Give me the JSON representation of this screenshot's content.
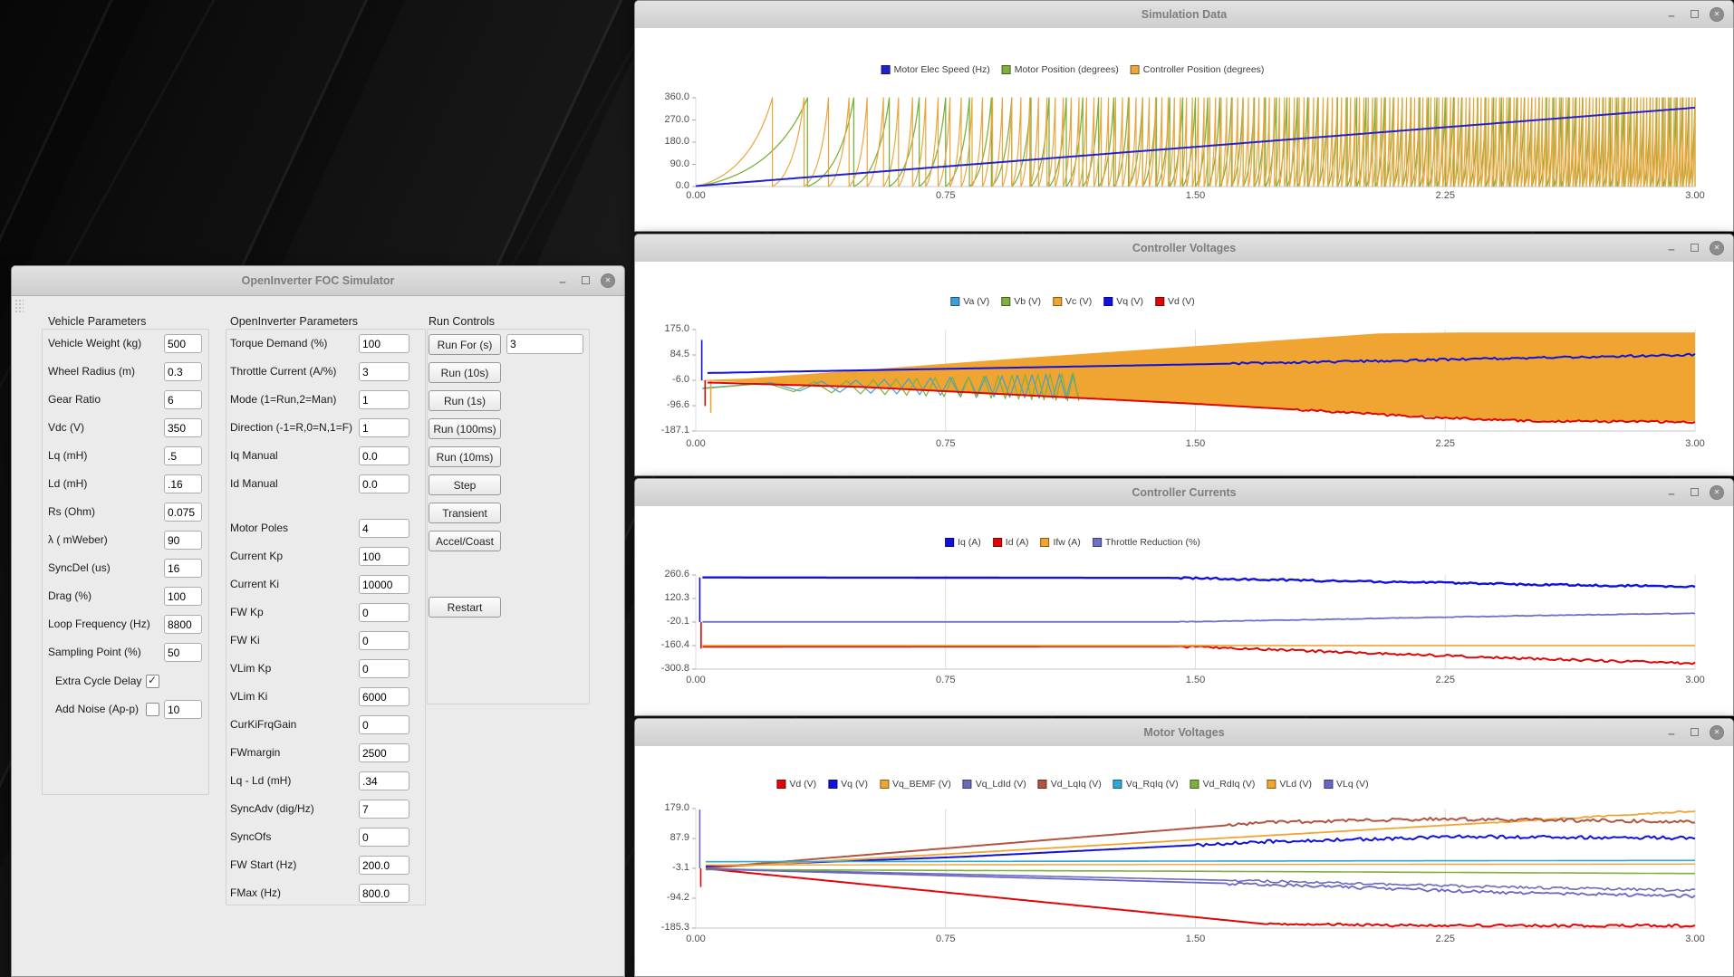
{
  "simulator_window": {
    "title": "OpenInverter FOC Simulator",
    "vehicle": {
      "heading": "Vehicle Parameters",
      "fields": [
        {
          "label": "Vehicle Weight (kg)",
          "value": "500"
        },
        {
          "label": "Wheel Radius (m)",
          "value": "0.3"
        },
        {
          "label": "Gear Ratio",
          "value": "6"
        },
        {
          "label": "Vdc (V)",
          "value": "350"
        },
        {
          "label": "Lq (mH)",
          "value": ".5"
        },
        {
          "label": "Ld (mH)",
          "value": ".16"
        },
        {
          "label": "Rs (Ohm)",
          "value": "0.075"
        },
        {
          "label": "λ ( mWeber)",
          "value": "90"
        },
        {
          "label": "SyncDel (us)",
          "value": "16"
        },
        {
          "label": "Drag (%)",
          "value": "100"
        },
        {
          "label": "Loop Frequency (Hz)",
          "value": "8800"
        },
        {
          "label": "Sampling Point (%)",
          "value": "50"
        }
      ],
      "checkboxes": [
        {
          "label": "Extra Cycle Delay",
          "checked": true,
          "value": null
        },
        {
          "label": "Add Noise (Ap-p)",
          "checked": false,
          "value": "10"
        }
      ]
    },
    "openinverter": {
      "heading": "OpenInverter Parameters",
      "fields_a": [
        {
          "label": "Torque Demand (%)",
          "value": "100"
        },
        {
          "label": "Throttle Current (A/%)",
          "value": "3"
        },
        {
          "label": "Mode (1=Run,2=Man)",
          "value": "1"
        },
        {
          "label": "Direction (-1=R,0=N,1=F)",
          "value": "1"
        },
        {
          "label": "Iq Manual",
          "value": "0.0"
        },
        {
          "label": "Id Manual",
          "value": "0.0"
        }
      ],
      "fields_b": [
        {
          "label": "Motor Poles",
          "value": "4"
        },
        {
          "label": "Current Kp",
          "value": "100"
        },
        {
          "label": "Current Ki",
          "value": "10000"
        },
        {
          "label": "FW Kp",
          "value": "0"
        },
        {
          "label": "FW Ki",
          "value": "0"
        },
        {
          "label": "VLim Kp",
          "value": "0"
        },
        {
          "label": "VLim Ki",
          "value": "6000"
        },
        {
          "label": "CurKiFrqGain",
          "value": "0"
        },
        {
          "label": "FWmargin",
          "value": "2500"
        },
        {
          "label": "Lq - Ld (mH)",
          "value": ".34"
        },
        {
          "label": "SyncAdv (dig/Hz)",
          "value": "7"
        },
        {
          "label": "SyncOfs",
          "value": "0"
        },
        {
          "label": "FW Start (Hz)",
          "value": "200.0"
        },
        {
          "label": "FMax (Hz)",
          "value": "800.0"
        }
      ]
    },
    "run_controls": {
      "heading": "Run Controls",
      "run_for_button": "Run For (s)",
      "run_for_value": "3",
      "buttons": [
        "Run (10s)",
        "Run (1s)",
        "Run (100ms)",
        "Run (10ms)",
        "Step",
        "Transient",
        "Accel/Coast"
      ],
      "restart_button": "Restart"
    }
  },
  "chart_windows": [
    {
      "title": "Simulation Data"
    },
    {
      "title": "Controller Voltages"
    },
    {
      "title": "Controller Currents"
    },
    {
      "title": "Motor Voltages"
    }
  ],
  "chart_data": [
    {
      "type": "line",
      "title": "Simulation Data",
      "xlim": [
        0,
        3
      ],
      "x_ticks": [
        "0.00",
        "0.75",
        "1.50",
        "2.25",
        "3.00"
      ],
      "ylim": [
        0,
        360
      ],
      "y_ticks": [
        "360.0",
        "270.0",
        "180.0",
        "90.0",
        "0.0"
      ],
      "grid": "vertical",
      "legend_position": "top",
      "series": [
        {
          "name": "Motor Elec Speed (Hz)",
          "color": "#2222cc",
          "width": 2,
          "points": [
            [
              0,
              2
            ],
            [
              3,
              320
            ]
          ]
        },
        {
          "name": "Motor Position (degrees)",
          "color": "#7db13f",
          "width": 1.3,
          "gen": "sawtooth",
          "x0": 0.02,
          "x1": 3,
          "vmin": 0,
          "vmax": 360,
          "cycles": 80
        },
        {
          "name": "Controller Position (degrees)",
          "color": "#eaa63c",
          "width": 1.2,
          "gen": "sawtooth",
          "x0": 0.01,
          "x1": 3,
          "vmin": 0,
          "vmax": 360,
          "cycles": 170
        }
      ]
    },
    {
      "type": "line",
      "title": "Controller Voltages",
      "xlim": [
        0,
        3
      ],
      "x_ticks": [
        "0.00",
        "0.75",
        "1.50",
        "2.25",
        "3.00"
      ],
      "ylim": [
        -187.1,
        175.0
      ],
      "y_ticks": [
        "175.0",
        "84.5",
        "-6.0",
        "-96.6",
        "-187.1"
      ],
      "grid": "vertical",
      "legend_position": "top",
      "series": [
        {
          "name": "Va (V)",
          "color": "#3d9fd8",
          "width": 1.2,
          "gen": "triangle",
          "x0": 0.02,
          "x1": 1.15,
          "center": -28,
          "amp0": 6,
          "amp1": 46,
          "cycles": 15
        },
        {
          "name": "Vb (V)",
          "color": "#7db13f",
          "width": 1.2,
          "gen": "triangle",
          "x0": 0.02,
          "x1": 1.15,
          "center": -30,
          "amp0": 6,
          "amp1": 50,
          "cycles": 17
        },
        {
          "name": "Vc (V)",
          "color": "#f0a432",
          "fill": {
            "top": [
              [
                0,
                -6
              ],
              [
                0.15,
                0
              ],
              [
                1.0,
                75
              ],
              [
                2.05,
                161
              ],
              [
                2.3,
                165
              ],
              [
                3,
                165
              ]
            ],
            "bottom": [
              [
                0,
                -6
              ],
              [
                0.5,
                -32
              ],
              [
                1.0,
                -58
              ],
              [
                2.0,
                -122
              ],
              [
                2.4,
                -149
              ],
              [
                3,
                -153
              ]
            ]
          },
          "spikes": [
            [
              0.045,
              -6,
              -122
            ]
          ]
        },
        {
          "name": "Vq (V)",
          "color": "#1111dd",
          "width": 2,
          "points": [
            [
              0.035,
              20
            ],
            [
              1.0,
              40
            ],
            [
              2.0,
              62
            ],
            [
              3,
              85
            ]
          ],
          "noise": 4,
          "noise_from": 1.6,
          "spikes": [
            [
              0.018,
              -6,
              138
            ]
          ]
        },
        {
          "name": "Vd (V)",
          "color": "#e00606",
          "width": 2,
          "points": [
            [
              0.035,
              -14
            ],
            [
              0.5,
              -30
            ],
            [
              1.5,
              -90
            ],
            [
              2.2,
              -138
            ],
            [
              2.5,
              -151
            ],
            [
              3,
              -155
            ]
          ],
          "noise": 4,
          "noise_from": 1.8,
          "spikes": [
            [
              0.028,
              -6,
              -98
            ]
          ]
        }
      ]
    },
    {
      "type": "line",
      "title": "Controller Currents",
      "xlim": [
        0,
        3
      ],
      "x_ticks": [
        "0.00",
        "0.75",
        "1.50",
        "2.25",
        "3.00"
      ],
      "ylim": [
        -300.8,
        260.6
      ],
      "y_ticks": [
        "260.6",
        "120.3",
        "-20.1",
        "-160.4",
        "-300.8"
      ],
      "grid": "vertical",
      "legend_position": "top",
      "series": [
        {
          "name": "Iq (A)",
          "color": "#1111dd",
          "width": 2.4,
          "points": [
            [
              0.02,
              246
            ],
            [
              1.45,
              243
            ],
            [
              2.0,
              222
            ],
            [
              2.5,
              204
            ],
            [
              3,
              192
            ]
          ],
          "noise": 6,
          "noise_from": 1.45,
          "spikes": [
            [
              0.012,
              -20,
              246
            ]
          ]
        },
        {
          "name": "Id (A)",
          "color": "#e00606",
          "width": 2,
          "points": [
            [
              0.02,
              -167
            ],
            [
              1.45,
              -165
            ],
            [
              2.0,
              -204
            ],
            [
              2.5,
              -238
            ],
            [
              3,
              -266
            ]
          ],
          "noise": 7,
          "noise_from": 1.45,
          "spikes": [
            [
              0.016,
              -20,
              -178
            ]
          ]
        },
        {
          "name": "Ifw (A)",
          "color": "#f0a432",
          "width": 1.6,
          "points": [
            [
              0.02,
              -160
            ],
            [
              3,
              -160
            ]
          ]
        },
        {
          "name": "Throttle Reduction (%)",
          "color": "#7070c8",
          "width": 1.8,
          "points": [
            [
              0.02,
              -19
            ],
            [
              1.45,
              -19
            ],
            [
              2.0,
              0
            ],
            [
              2.5,
              18
            ],
            [
              3,
              32
            ]
          ],
          "noise": 2,
          "noise_from": 1.45
        }
      ]
    },
    {
      "type": "line",
      "title": "Motor Voltages",
      "xlim": [
        0,
        3
      ],
      "x_ticks": [
        "0.00",
        "0.75",
        "1.50",
        "2.25",
        "3.00"
      ],
      "ylim": [
        -185.3,
        179.0
      ],
      "y_ticks": [
        "179.0",
        "87.9",
        "-3.1",
        "-94.2",
        "-185.3"
      ],
      "grid": "vertical",
      "legend_position": "top",
      "series": [
        {
          "name": "Vd (V)",
          "color": "#e00606",
          "width": 2,
          "points": [
            [
              0.03,
              -4
            ],
            [
              1.7,
              -172
            ],
            [
              2.1,
              -177
            ],
            [
              3,
              -178
            ]
          ],
          "noise": 4,
          "noise_from": 1.7,
          "spikes": [
            [
              0.015,
              -3,
              -60
            ]
          ]
        },
        {
          "name": "Vq (V)",
          "color": "#1111dd",
          "width": 2,
          "points": [
            [
              0.03,
              3
            ],
            [
              0.8,
              32
            ],
            [
              1.7,
              78
            ],
            [
              2.3,
              93
            ],
            [
              3,
              89
            ]
          ],
          "noise": 5,
          "noise_from": 1.5
        },
        {
          "name": "Vq_BEMF (V)",
          "color": "#f0a432",
          "width": 1.8,
          "points": [
            [
              0.03,
              -2
            ],
            [
              3,
              172
            ]
          ],
          "noise": 2,
          "noise_from": 2.4
        },
        {
          "name": "Vq_LdId (V)",
          "color": "#6a6ab8",
          "width": 1.6,
          "points": [
            [
              0.03,
              -4
            ],
            [
              1.7,
              -42
            ],
            [
              2.4,
              -60
            ],
            [
              3,
              -70
            ]
          ],
          "noise": 4,
          "noise_from": 1.6
        },
        {
          "name": "Vd_LqIq (V)",
          "color": "#b2543f",
          "width": 2,
          "points": [
            [
              0.03,
              -2
            ],
            [
              1.7,
              137
            ],
            [
              2.2,
              147
            ],
            [
              2.6,
              144
            ],
            [
              3,
              139
            ]
          ],
          "noise": 5,
          "noise_from": 1.6
        },
        {
          "name": "Vq_RqIq (V)",
          "color": "#2fa8d5",
          "width": 1.6,
          "points": [
            [
              0.03,
              17
            ],
            [
              3,
              21
            ]
          ]
        },
        {
          "name": "Vd_RdIq (V)",
          "color": "#7db13f",
          "width": 1.6,
          "points": [
            [
              0.03,
              -7
            ],
            [
              1.5,
              -12
            ],
            [
              3,
              -19
            ]
          ]
        },
        {
          "name": "VLd (V)",
          "color": "#f0a432",
          "width": 1.4,
          "points": [
            [
              0.03,
              7
            ],
            [
              3,
              10
            ]
          ]
        },
        {
          "name": "VLq (V)",
          "color": "#6a66c8",
          "width": 1.8,
          "points": [
            [
              0.03,
              -5
            ],
            [
              1.7,
              -52
            ],
            [
              2.4,
              -76
            ],
            [
              3,
              -88
            ]
          ],
          "noise": 5,
          "noise_from": 1.6,
          "spikes": [
            [
              0.012,
              -3,
              176
            ]
          ]
        }
      ]
    }
  ]
}
